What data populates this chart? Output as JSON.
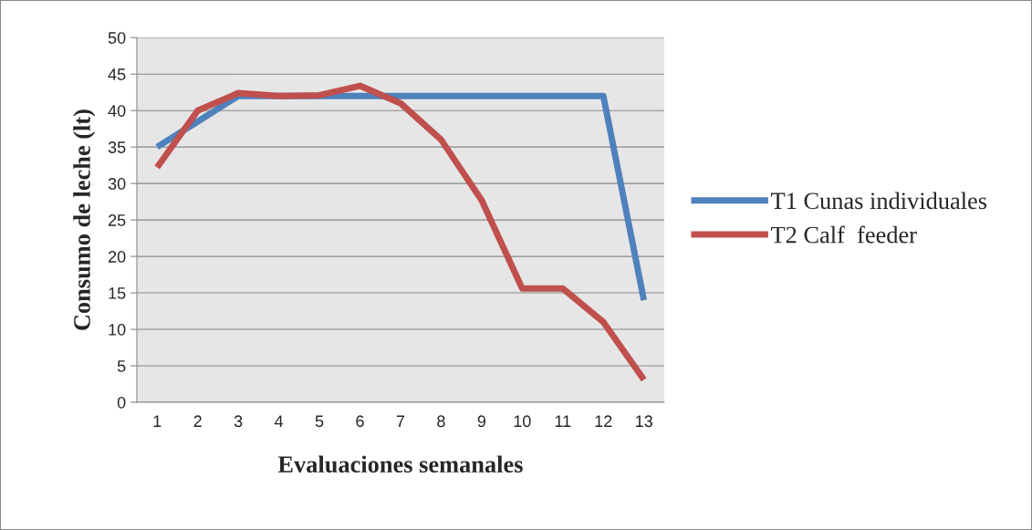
{
  "chart_data": {
    "type": "line",
    "xlabel": "Evaluaciones semanales",
    "ylabel": "Consumo de leche (lt)",
    "categories": [
      "1",
      "2",
      "3",
      "4",
      "5",
      "6",
      "7",
      "8",
      "9",
      "10",
      "11",
      "12",
      "13"
    ],
    "series": [
      {
        "name": "T1 Cunas individuales",
        "color": "#4f81bd",
        "values": [
          35,
          38.5,
          42,
          42,
          42,
          42,
          42,
          42,
          42,
          42,
          42,
          42,
          14
        ]
      },
      {
        "name": "T2 Calf  feeder",
        "color": "#c0504d",
        "values": [
          32.2,
          40,
          42.4,
          42,
          42.1,
          43.4,
          41,
          36,
          27.7,
          15.6,
          15.6,
          11,
          3.1
        ]
      }
    ],
    "ylim": [
      0,
      50
    ],
    "yticks": [
      0,
      5,
      10,
      15,
      20,
      25,
      30,
      35,
      40,
      45,
      50
    ],
    "grid": "y",
    "legend": "right",
    "marker": "none",
    "line_style": "solid"
  }
}
